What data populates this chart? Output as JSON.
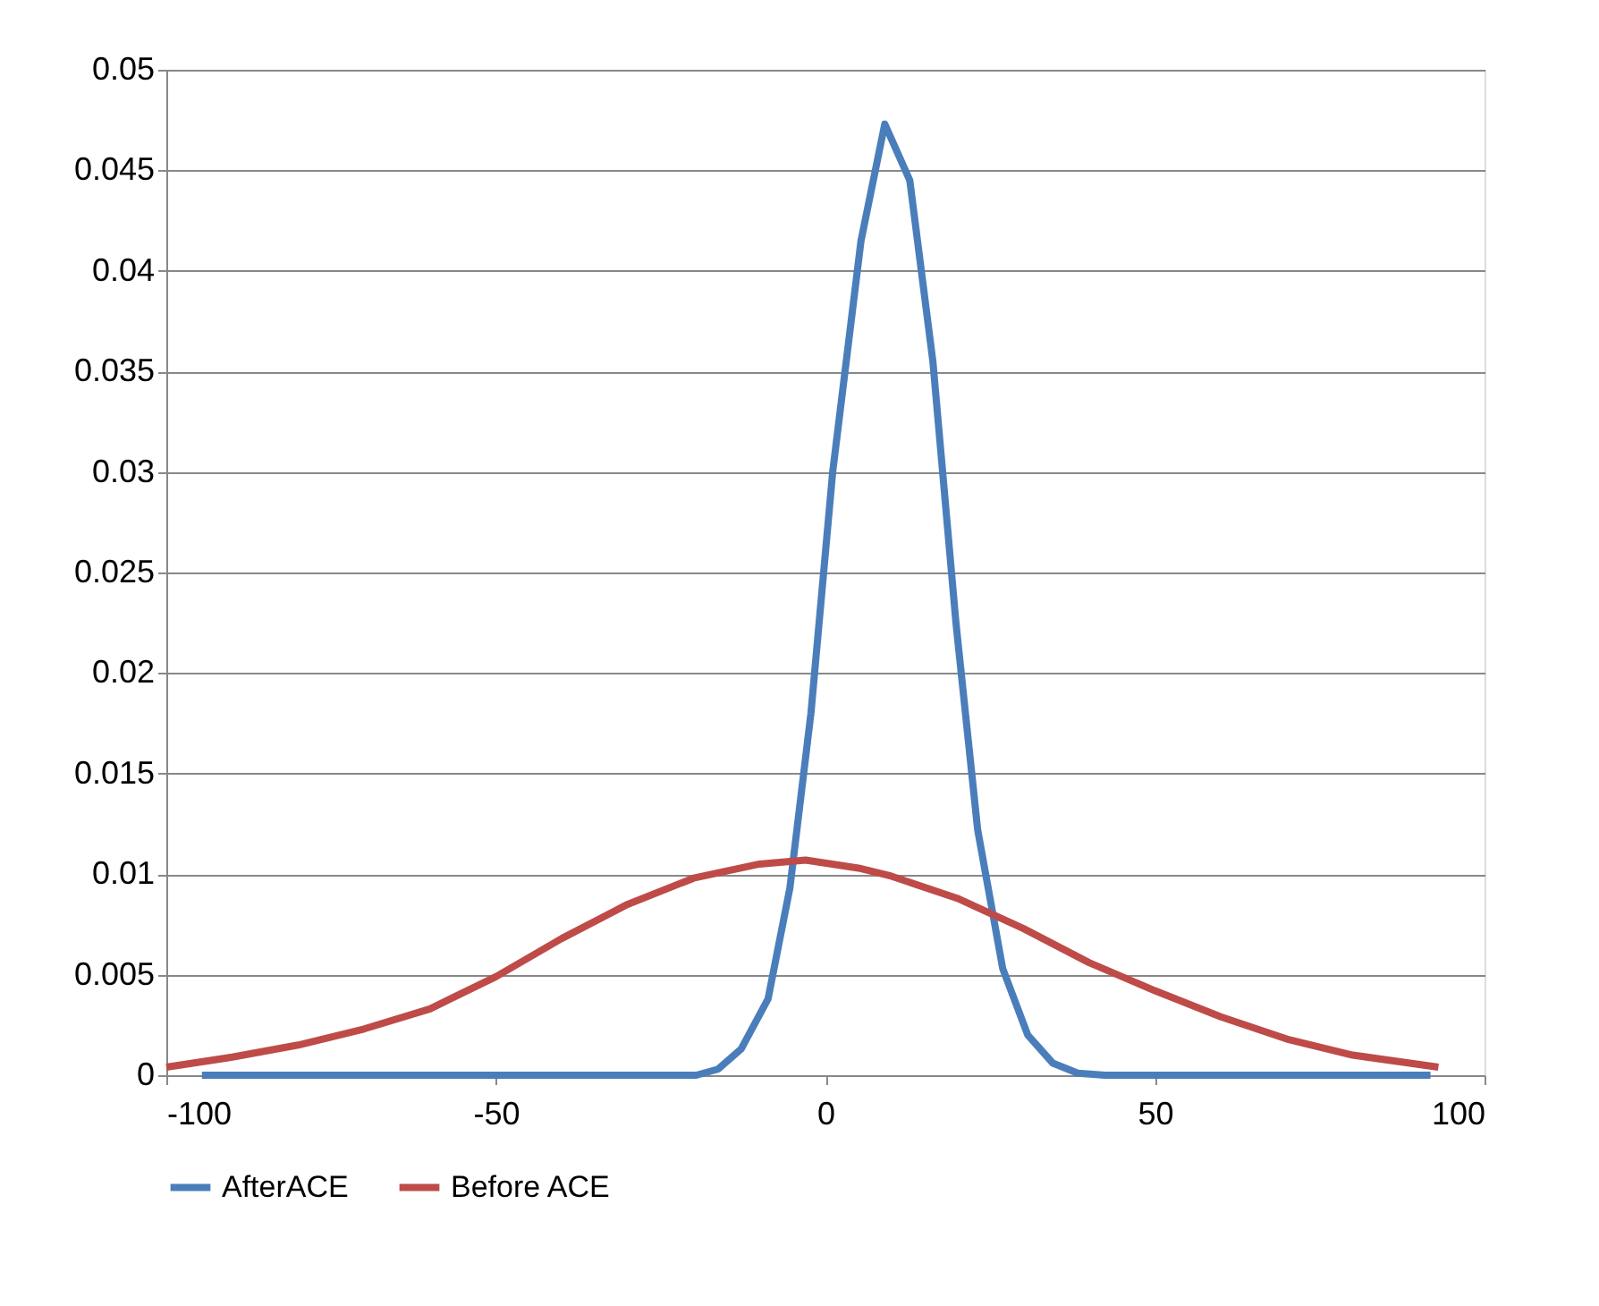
{
  "chart_data": {
    "type": "line",
    "legend": "bottom",
    "grid": "y",
    "marker": "none",
    "line_style": "solid",
    "xlim": [
      -100,
      100
    ],
    "xticks": [
      -100,
      -50,
      0,
      50,
      100
    ],
    "ylim": [
      0,
      0.05
    ],
    "yticks": [
      0,
      0.005,
      0.01,
      0.015,
      0.02,
      0.025,
      0.03,
      0.035,
      0.04,
      0.045,
      0.05
    ],
    "series": [
      {
        "name": "AfterACE",
        "color": "#4a7ebb",
        "x": [
          -94.6,
          -19.6,
          -16.3,
          -12.8,
          -8.7,
          -5.4,
          -2.2,
          1.1,
          5.4,
          9.0,
          12.8,
          16.3,
          19.8,
          23.1,
          26.9,
          30.7,
          34.5,
          38.3,
          42.4,
          91.8
        ],
        "values": [
          0,
          0,
          0.0003,
          0.0013,
          0.0038,
          0.0093,
          0.018,
          0.03,
          0.0415,
          0.0473,
          0.0445,
          0.0355,
          0.0225,
          0.0122,
          0.0053,
          0.002,
          0.0006,
          0.0001,
          0,
          0
        ]
      },
      {
        "name": "Before ACE",
        "color": "#be4b48",
        "x": [
          -100,
          -90,
          -80,
          -70,
          -60,
          -50,
          -40,
          -30,
          -20,
          -10,
          -3,
          5,
          10,
          20,
          30,
          40,
          50,
          60,
          70,
          80,
          93
        ],
        "values": [
          0.0004,
          0.0009,
          0.0015,
          0.0023,
          0.0033,
          0.0049,
          0.0068,
          0.0085,
          0.0098,
          0.0105,
          0.0107,
          0.0103,
          0.0099,
          0.0088,
          0.0073,
          0.0056,
          0.0042,
          0.0029,
          0.0018,
          0.001,
          0.0004
        ]
      }
    ]
  }
}
